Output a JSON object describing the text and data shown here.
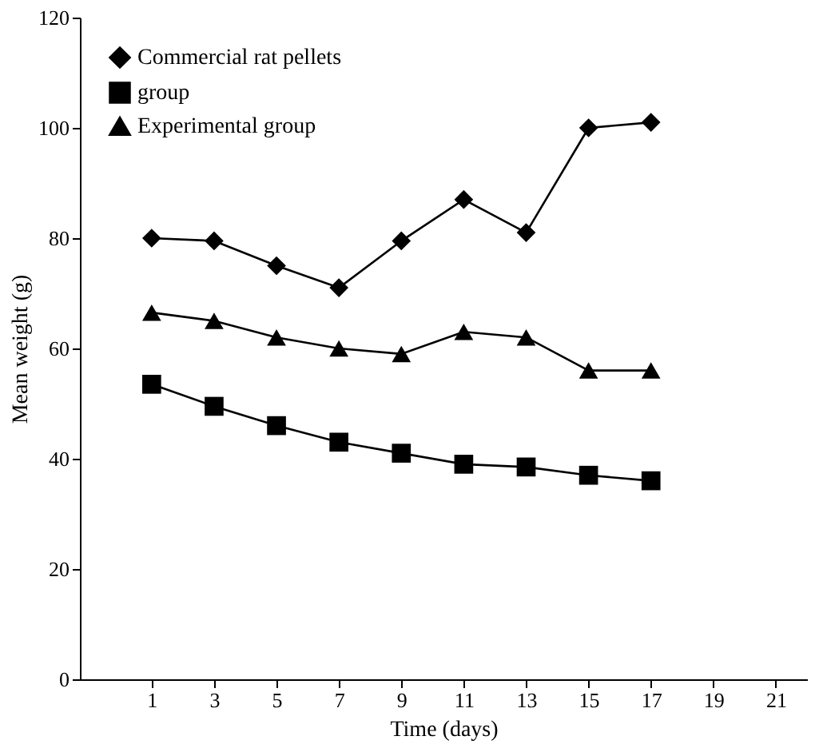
{
  "chart_data": {
    "type": "line",
    "xlabel": "Time (days)",
    "ylabel": "Mean weight (g)",
    "x": [
      1,
      3,
      5,
      7,
      9,
      11,
      13,
      15,
      17
    ],
    "series": [
      {
        "name": "Commercial rat pellets",
        "color": "#000000",
        "marker": "diamond",
        "values": [
          80,
          79.5,
          75,
          71,
          79.5,
          87,
          81,
          100,
          101
        ]
      },
      {
        "name": "group",
        "color": "#000000",
        "marker": "square",
        "values": [
          53.5,
          49.5,
          46,
          43,
          41,
          39,
          38.5,
          37,
          36
        ]
      },
      {
        "name": "Experimental group",
        "color": "#000000",
        "marker": "triangle",
        "values": [
          66.5,
          65,
          62,
          60,
          59,
          63,
          62,
          56,
          56
        ]
      }
    ],
    "xlim": [
      -1.3,
      22
    ],
    "xticks": [
      1,
      3,
      5,
      7,
      9,
      11,
      13,
      15,
      17,
      19,
      21
    ],
    "ylim": [
      0,
      120
    ],
    "yticks": [
      0,
      20,
      40,
      60,
      80,
      100,
      120
    ],
    "grid": false,
    "legend": "top left",
    "line_style": "solid"
  }
}
